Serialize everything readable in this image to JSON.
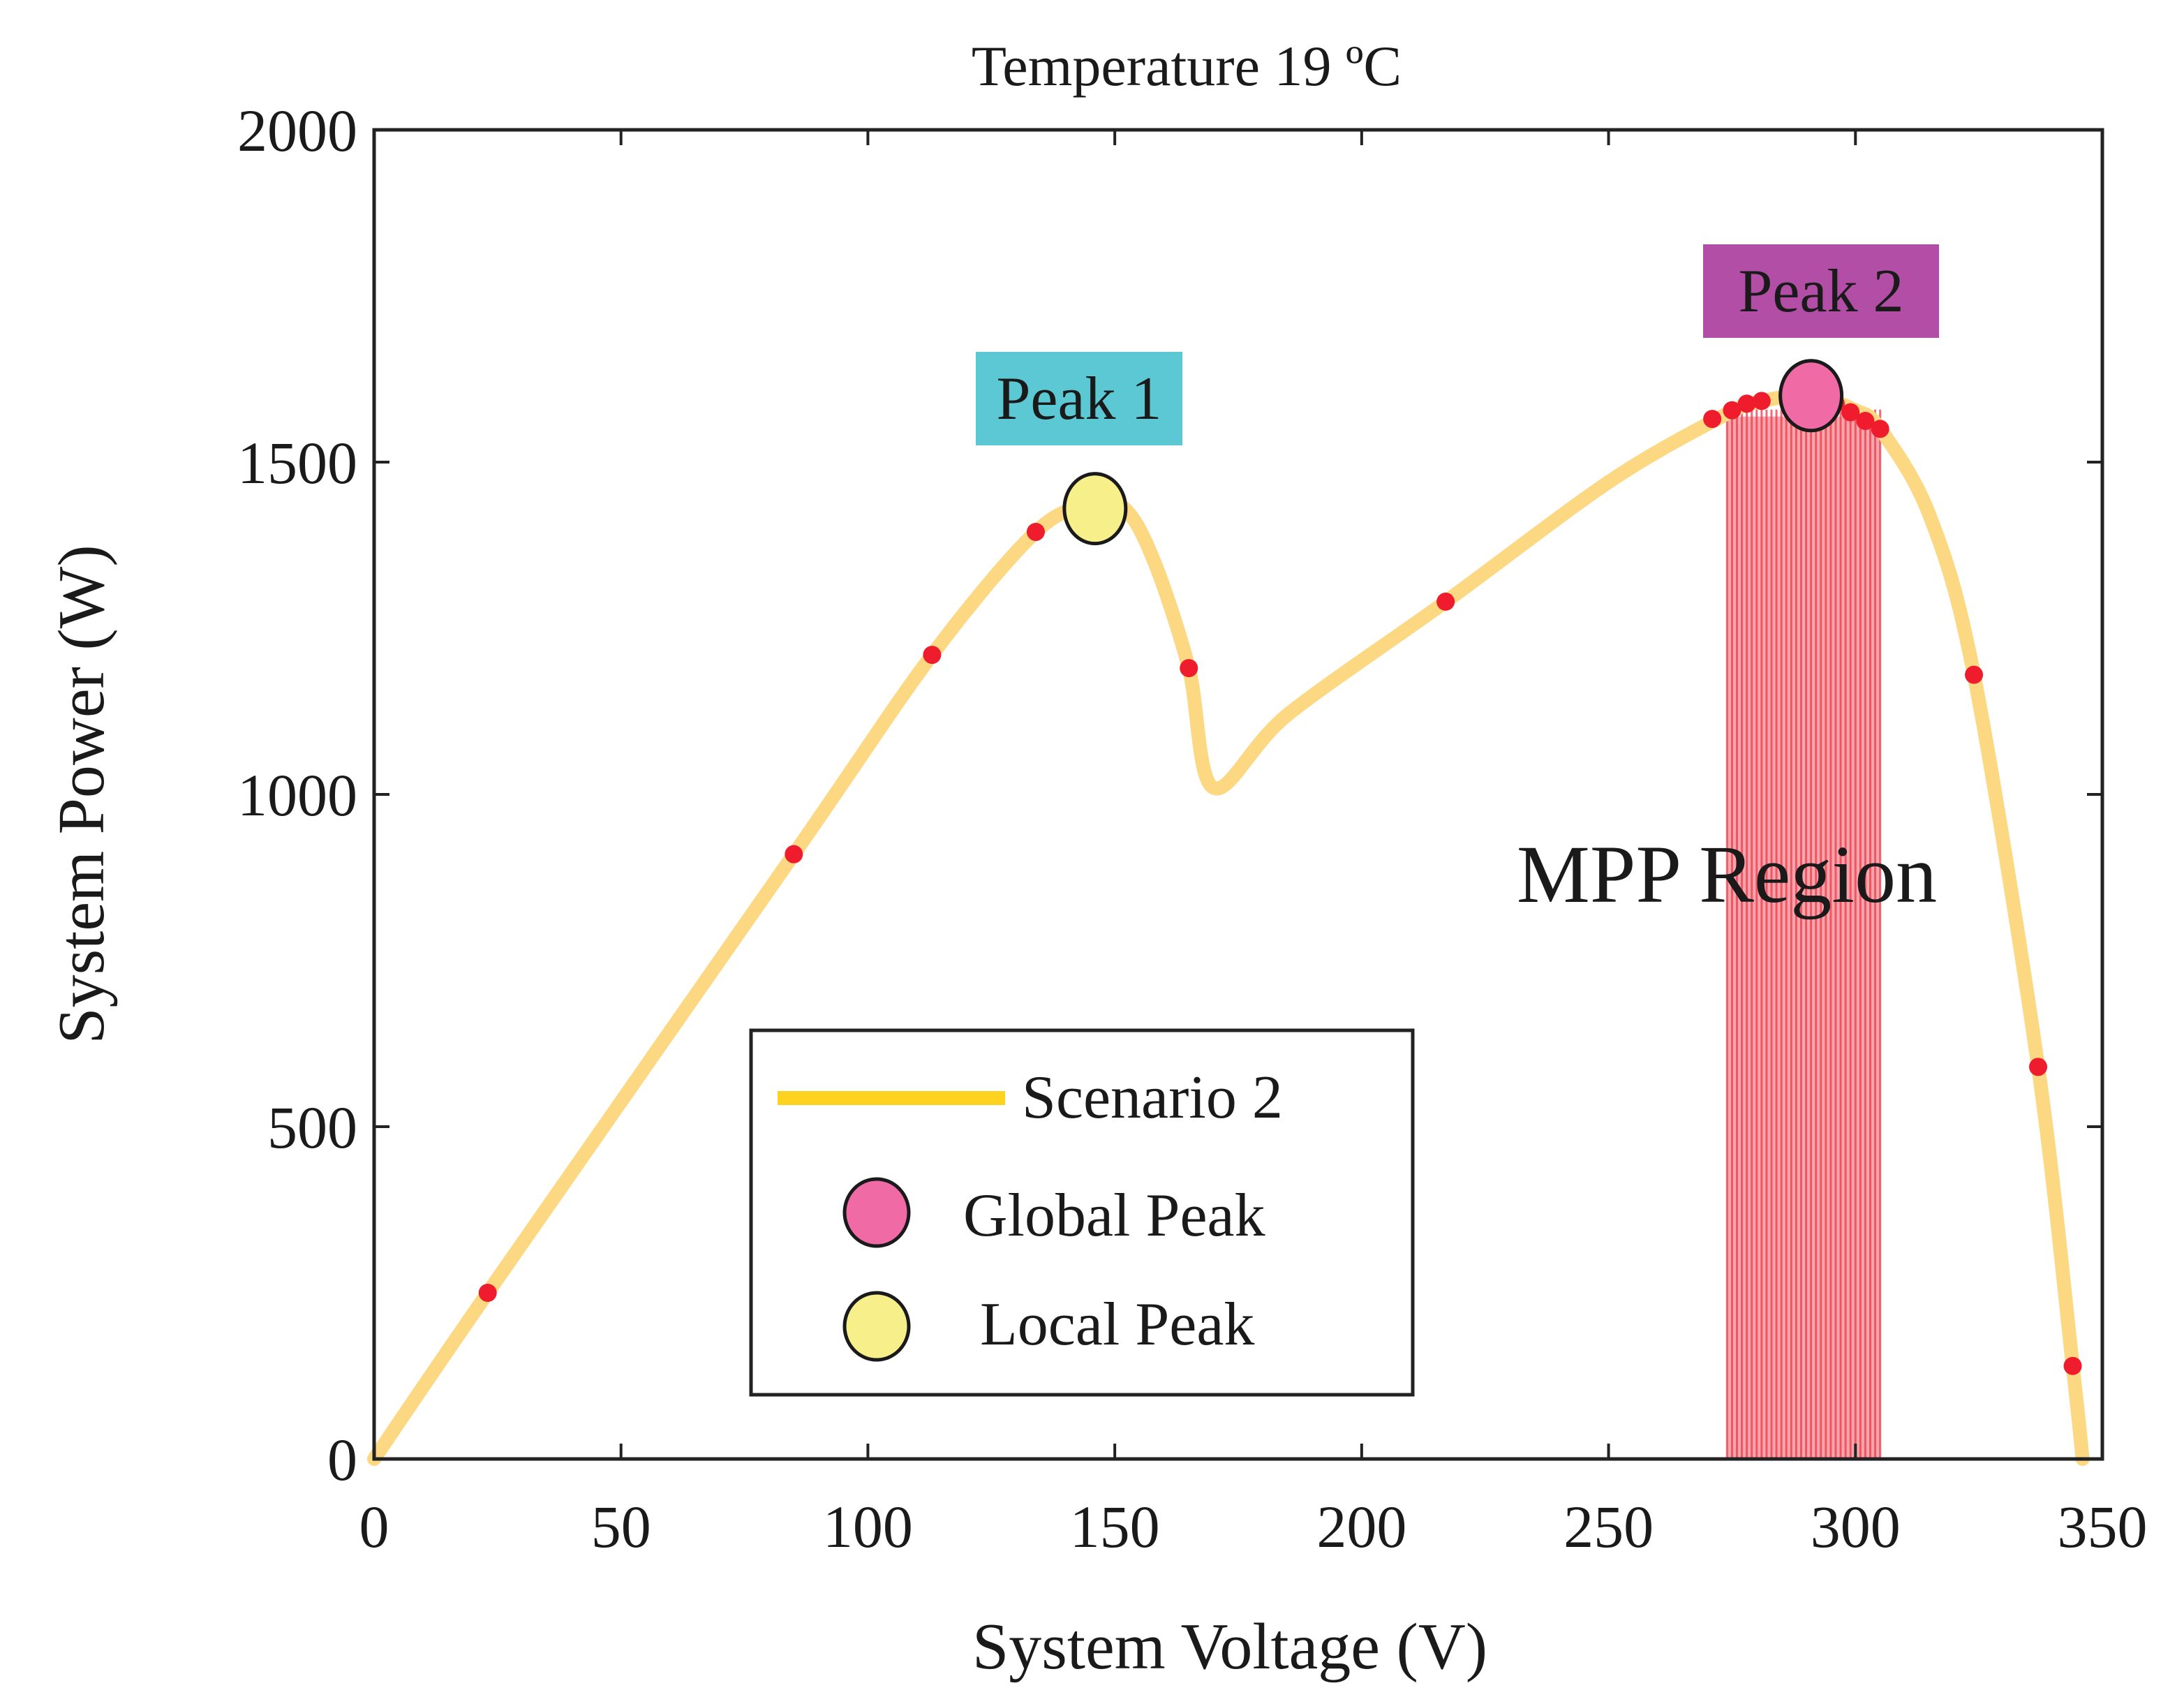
{
  "chart_data": {
    "type": "line",
    "title": "Temperature 19 ºC",
    "xlabel": "System Voltage (V)",
    "ylabel": "System Power (W)",
    "xlim": [
      0,
      350
    ],
    "ylim": [
      0,
      2000
    ],
    "xticks": [
      0,
      50,
      100,
      150,
      200,
      250,
      300,
      350
    ],
    "yticks": [
      0,
      500,
      1000,
      1500,
      2000
    ],
    "grid": false,
    "legend_position": "bottom-center",
    "colors": {
      "curve": "#fdd882",
      "legend_line": "#ffd21f",
      "samples": "#ee1c2c",
      "global_peak": "#f06aa6",
      "local_peak": "#f7ef8a",
      "mpp_region": "#ee3a4a",
      "peak1_bg": "#5bc8d4",
      "peak2_bg": "#b24ea6"
    },
    "series": [
      {
        "name": "Scenario 2",
        "x": [
          0,
          23,
          85,
          113,
          134,
          145,
          152,
          158,
          165,
          170,
          185,
          217,
          250,
          272,
          280,
          291,
          300,
          305,
          315,
          324,
          337,
          344,
          346
        ],
        "y": [
          0,
          250,
          910,
          1210,
          1395,
          1435,
          1430,
          1350,
          1190,
          1010,
          1120,
          1290,
          1470,
          1565,
          1590,
          1600,
          1578,
          1550,
          1420,
          1180,
          590,
          140,
          0
        ]
      }
    ],
    "sample_points": {
      "x": [
        23,
        85,
        113,
        134,
        165,
        217,
        271,
        275,
        278,
        281,
        296,
        299,
        302,
        305,
        324,
        337,
        344
      ],
      "y": [
        250,
        910,
        1210,
        1395,
        1190,
        1290,
        1565,
        1578,
        1588,
        1592,
        1588,
        1575,
        1562,
        1550,
        1180,
        590,
        140
      ]
    },
    "global_peak": {
      "x": 291,
      "y": 1600,
      "label": "Peak 2"
    },
    "local_peak": {
      "x": 146,
      "y": 1430,
      "label": "Peak 1"
    },
    "mpp_region": {
      "label": "MPP Region",
      "x_range": [
        274,
        305
      ],
      "lines_x": [
        274,
        275,
        276,
        277,
        278,
        279,
        280,
        281,
        282,
        283,
        284,
        285,
        286,
        287,
        288,
        289,
        290,
        291,
        292,
        293,
        294,
        295,
        296,
        297,
        298,
        299,
        300,
        301,
        302,
        303,
        304,
        305
      ]
    },
    "legend": {
      "entries": [
        "Scenario 2",
        "Global Peak",
        "Local Peak"
      ]
    }
  }
}
